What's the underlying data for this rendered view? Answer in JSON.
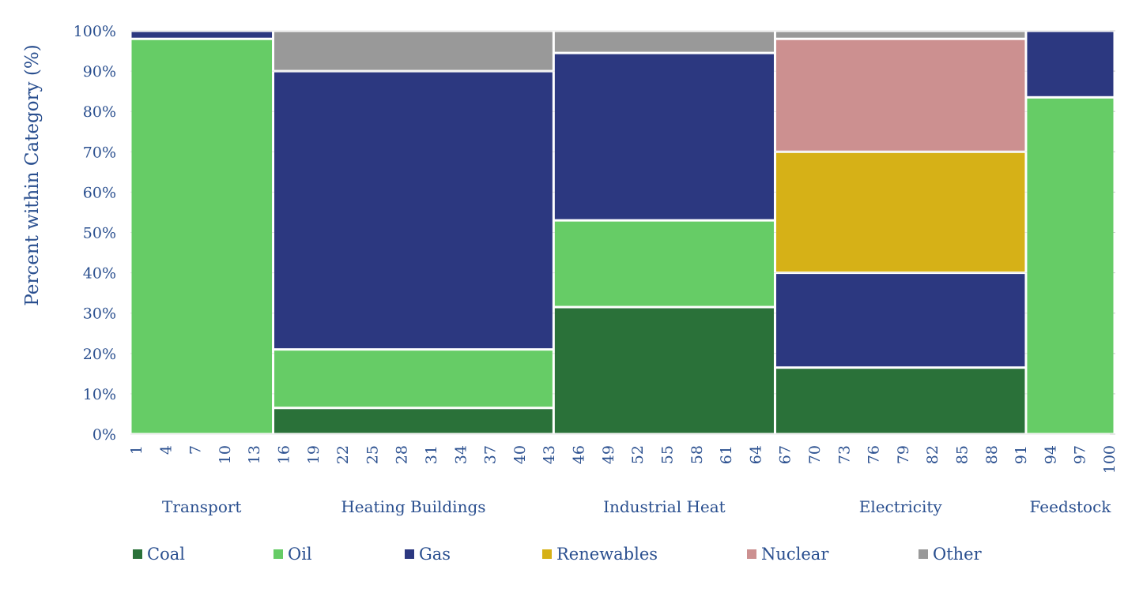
{
  "chart_data": {
    "type": "marimekko",
    "ylabel": "Percent within Category (%)",
    "y_ticks": [
      "0%",
      "10%",
      "20%",
      "30%",
      "40%",
      "50%",
      "60%",
      "70%",
      "80%",
      "90%",
      "100%"
    ],
    "ylim": [
      0,
      100
    ],
    "x_ticks": [
      "1",
      "4",
      "7",
      "10",
      "13",
      "16",
      "19",
      "22",
      "25",
      "28",
      "31",
      "34",
      "37",
      "40",
      "43",
      "46",
      "49",
      "52",
      "55",
      "58",
      "61",
      "64",
      "67",
      "70",
      "73",
      "76",
      "79",
      "82",
      "85",
      "88",
      "91",
      "94",
      "97",
      "100"
    ],
    "xlim": [
      0,
      100
    ],
    "legend_position": "bottom",
    "series": [
      {
        "name": "Coal",
        "color": "#2a7139"
      },
      {
        "name": "Oil",
        "color": "#66cc66"
      },
      {
        "name": "Gas",
        "color": "#2c3880"
      },
      {
        "name": "Renewables",
        "color": "#d6b117"
      },
      {
        "name": "Nuclear",
        "color": "#cc9090"
      },
      {
        "name": "Other",
        "color": "#999999"
      }
    ],
    "categories": [
      {
        "label": "Transport",
        "x_start": 0,
        "x_end": 14.5,
        "values": [
          0,
          98,
          2,
          0,
          0,
          0
        ]
      },
      {
        "label": "Heating Buildings",
        "x_start": 14.5,
        "x_end": 43,
        "values": [
          6.5,
          14.5,
          69,
          0,
          0,
          10
        ]
      },
      {
        "label": "Industrial Heat",
        "x_start": 43,
        "x_end": 65.5,
        "values": [
          31.5,
          21.5,
          41.5,
          0,
          0,
          5.5
        ]
      },
      {
        "label": "Electricity",
        "x_start": 65.5,
        "x_end": 91,
        "values": [
          16.5,
          0,
          23.5,
          30,
          28,
          2
        ]
      },
      {
        "label": "Feedstock",
        "x_start": 91,
        "x_end": 100,
        "values": [
          0,
          83.5,
          16.5,
          0,
          0,
          0
        ]
      }
    ]
  }
}
